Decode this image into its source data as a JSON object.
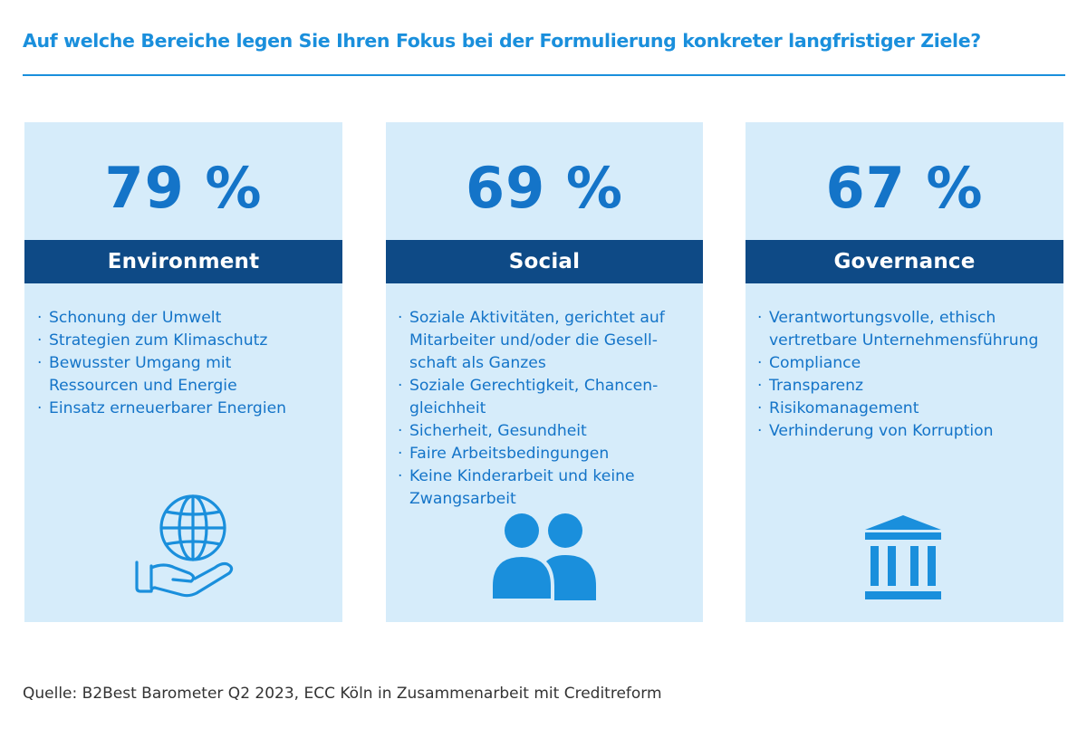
{
  "title": "Auf welche Bereiche legen Sie Ihren Fokus bei der Formulierung konkreter langfristiger Ziele?",
  "colors": {
    "accent": "#1a8fdc",
    "card_bg": "#d6ecfa",
    "band_bg": "#0e4a86",
    "text_blue": "#1474c8"
  },
  "cards": [
    {
      "percent": "79 %",
      "label": "Environment",
      "icon": "globe-in-hand-icon",
      "items": [
        "Schonung der Umwelt",
        "Strategien zum Klimaschutz",
        "Bewusster Umgang mit Ressourcen und Energie",
        "Einsatz erneuerbarer Energien"
      ]
    },
    {
      "percent": "69 %",
      "label": "Social",
      "icon": "people-icon",
      "items": [
        "Soziale Aktivitäten, gerichtet auf Mitarbeiter und/oder die Gesell-schaft als Ganzes",
        "Soziale Gerechtigkeit, Chancen-gleichheit",
        "Sicherheit, Gesundheit",
        "Faire Arbeitsbedingungen",
        "Keine Kinderarbeit und keine Zwangsarbeit"
      ]
    },
    {
      "percent": "67 %",
      "label": "Governance",
      "icon": "institution-building-icon",
      "items": [
        "Verantwortungsvolle, ethisch vertretbare Unternehmensführung",
        "Compliance",
        "Transparenz",
        "Risikomanagement",
        "Verhinderung von Korruption"
      ]
    }
  ],
  "source": "Quelle: B2Best Barometer Q2 2023, ECC Köln in Zusammenarbeit mit Creditreform"
}
